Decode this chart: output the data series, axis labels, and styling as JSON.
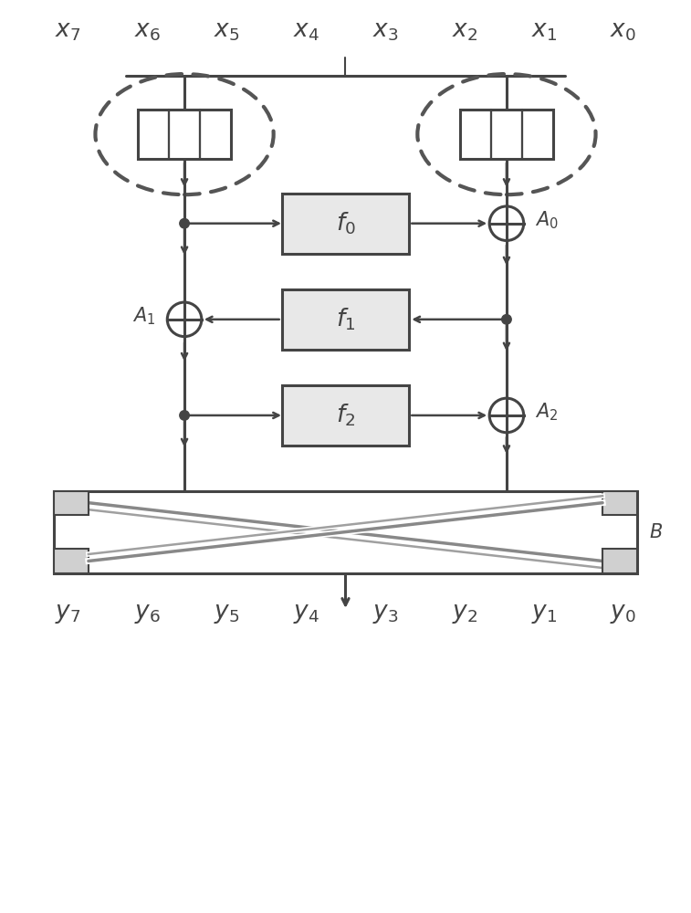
{
  "bg_color": "#ffffff",
  "line_color": "#444444",
  "dashed_color": "#555555",
  "box_fill": "#e8e8e8",
  "cross_color": "#888888",
  "figsize": [
    7.57,
    10.0
  ],
  "dpi": 100,
  "x_labels": [
    "x_7",
    "x_6",
    "x_5",
    "x_4",
    "x_3",
    "x_2",
    "x_1",
    "x_0"
  ],
  "y_labels": [
    "y_7",
    "y_6",
    "y_5",
    "y_4",
    "y_3",
    "y_2",
    "y_1",
    "y_0"
  ],
  "f_labels": [
    "f_0",
    "f_1",
    "f_2"
  ],
  "A_labels": [
    "A_0",
    "A_1",
    "A_2"
  ],
  "B_label": "B",
  "xlim": [
    0,
    10
  ],
  "ylim": [
    0,
    13.3
  ]
}
